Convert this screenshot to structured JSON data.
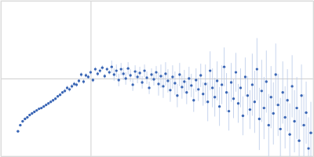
{
  "chart_data": {
    "type": "scatter",
    "x": [
      0.022,
      0.025,
      0.028,
      0.031,
      0.034,
      0.037,
      0.04,
      0.043,
      0.046,
      0.049,
      0.052,
      0.055,
      0.058,
      0.061,
      0.064,
      0.067,
      0.07,
      0.073,
      0.076,
      0.079,
      0.082,
      0.085,
      0.088,
      0.091,
      0.094,
      0.097,
      0.1,
      0.103,
      0.106,
      0.109,
      0.112,
      0.115,
      0.118,
      0.121,
      0.124,
      0.127,
      0.13,
      0.133,
      0.136,
      0.139,
      0.142,
      0.145,
      0.148,
      0.151,
      0.154,
      0.157,
      0.16,
      0.163,
      0.166,
      0.169,
      0.172,
      0.175,
      0.178,
      0.181,
      0.184,
      0.187,
      0.19,
      0.193,
      0.196,
      0.199,
      0.202,
      0.205,
      0.208,
      0.211,
      0.214,
      0.217,
      0.22,
      0.223,
      0.226,
      0.229,
      0.232,
      0.235,
      0.238,
      0.241,
      0.244,
      0.247,
      0.25,
      0.253,
      0.256,
      0.259,
      0.262,
      0.265,
      0.268,
      0.271,
      0.274,
      0.277,
      0.28,
      0.283,
      0.286,
      0.289,
      0.292,
      0.295,
      0.298,
      0.301,
      0.304,
      0.307,
      0.31,
      0.313,
      0.316,
      0.319,
      0.322,
      0.325,
      0.328,
      0.331,
      0.334,
      0.337,
      0.34,
      0.343,
      0.346,
      0.349,
      0.352,
      0.355,
      0.358,
      0.361,
      0.364,
      0.367,
      0.37,
      0.373,
      0.376,
      0.379,
      0.382,
      0.385,
      0.388,
      0.391,
      0.394,
      0.397
    ],
    "values": [
      0.32,
      0.4,
      0.45,
      0.48,
      0.5,
      0.53,
      0.55,
      0.57,
      0.59,
      0.61,
      0.62,
      0.64,
      0.66,
      0.68,
      0.7,
      0.72,
      0.74,
      0.77,
      0.79,
      0.82,
      0.84,
      0.88,
      0.86,
      0.9,
      0.93,
      0.92,
      0.97,
      1.05,
      0.96,
      1.04,
      1.02,
      1.08,
      0.98,
      1.12,
      1.06,
      1.1,
      1.14,
      1.03,
      1.12,
      1.08,
      1.15,
      1.05,
      1.1,
      0.98,
      1.12,
      1.06,
      1.0,
      1.13,
      1.04,
      0.92,
      1.09,
      1.02,
      1.07,
      0.95,
      1.1,
      1.01,
      0.88,
      1.05,
      0.99,
      1.08,
      0.93,
      1.03,
      0.9,
      1.06,
      0.97,
      0.85,
      1.02,
      0.94,
      0.78,
      1.05,
      0.89,
      0.96,
      0.82,
      1.0,
      0.91,
      0.72,
      0.98,
      0.86,
      1.04,
      0.8,
      0.93,
      0.7,
      1.1,
      0.88,
      0.76,
      0.97,
      0.64,
      0.92,
      1.15,
      0.82,
      0.58,
      0.95,
      0.74,
      1.08,
      0.68,
      0.88,
      0.52,
      1.02,
      0.78,
      0.6,
      0.92,
      0.7,
      1.12,
      0.48,
      0.84,
      0.62,
      0.96,
      0.4,
      0.76,
      0.55,
      1.05,
      0.66,
      0.35,
      0.82,
      0.5,
      0.72,
      0.28,
      0.9,
      0.45,
      0.62,
      0.2,
      0.78,
      0.4,
      0.56,
      0.1,
      0.3
    ],
    "errors": [
      0.01,
      0.01,
      0.01,
      0.01,
      0.01,
      0.01,
      0.01,
      0.01,
      0.01,
      0.01,
      0.01,
      0.01,
      0.01,
      0.01,
      0.01,
      0.01,
      0.01,
      0.01,
      0.01,
      0.01,
      0.03,
      0.03,
      0.03,
      0.03,
      0.03,
      0.03,
      0.03,
      0.03,
      0.03,
      0.03,
      0.03,
      0.03,
      0.03,
      0.03,
      0.03,
      0.03,
      0.03,
      0.03,
      0.03,
      0.03,
      0.08,
      0.08,
      0.08,
      0.08,
      0.08,
      0.08,
      0.08,
      0.08,
      0.08,
      0.08,
      0.08,
      0.08,
      0.08,
      0.08,
      0.08,
      0.08,
      0.08,
      0.08,
      0.08,
      0.08,
      0.15,
      0.15,
      0.15,
      0.15,
      0.15,
      0.15,
      0.15,
      0.15,
      0.15,
      0.15,
      0.15,
      0.15,
      0.15,
      0.15,
      0.15,
      0.15,
      0.15,
      0.15,
      0.15,
      0.15,
      0.25,
      0.25,
      0.25,
      0.25,
      0.25,
      0.25,
      0.25,
      0.25,
      0.25,
      0.25,
      0.25,
      0.25,
      0.25,
      0.25,
      0.25,
      0.25,
      0.25,
      0.25,
      0.25,
      0.25,
      0.4,
      0.4,
      0.4,
      0.4,
      0.4,
      0.4,
      0.4,
      0.4,
      0.4,
      0.4,
      0.4,
      0.4,
      0.4,
      0.4,
      0.4,
      0.4,
      0.4,
      0.4,
      0.4,
      0.4,
      0.4,
      0.4,
      0.4,
      0.4,
      0.4,
      0.4
    ],
    "color": "#3a66b5",
    "marker": "circle",
    "xlim": [
      0,
      0.4
    ],
    "ylim": [
      0,
      2
    ],
    "xticks": [
      0.115
    ],
    "yticks": [
      1
    ],
    "grid": true,
    "tick_labels": false
  }
}
